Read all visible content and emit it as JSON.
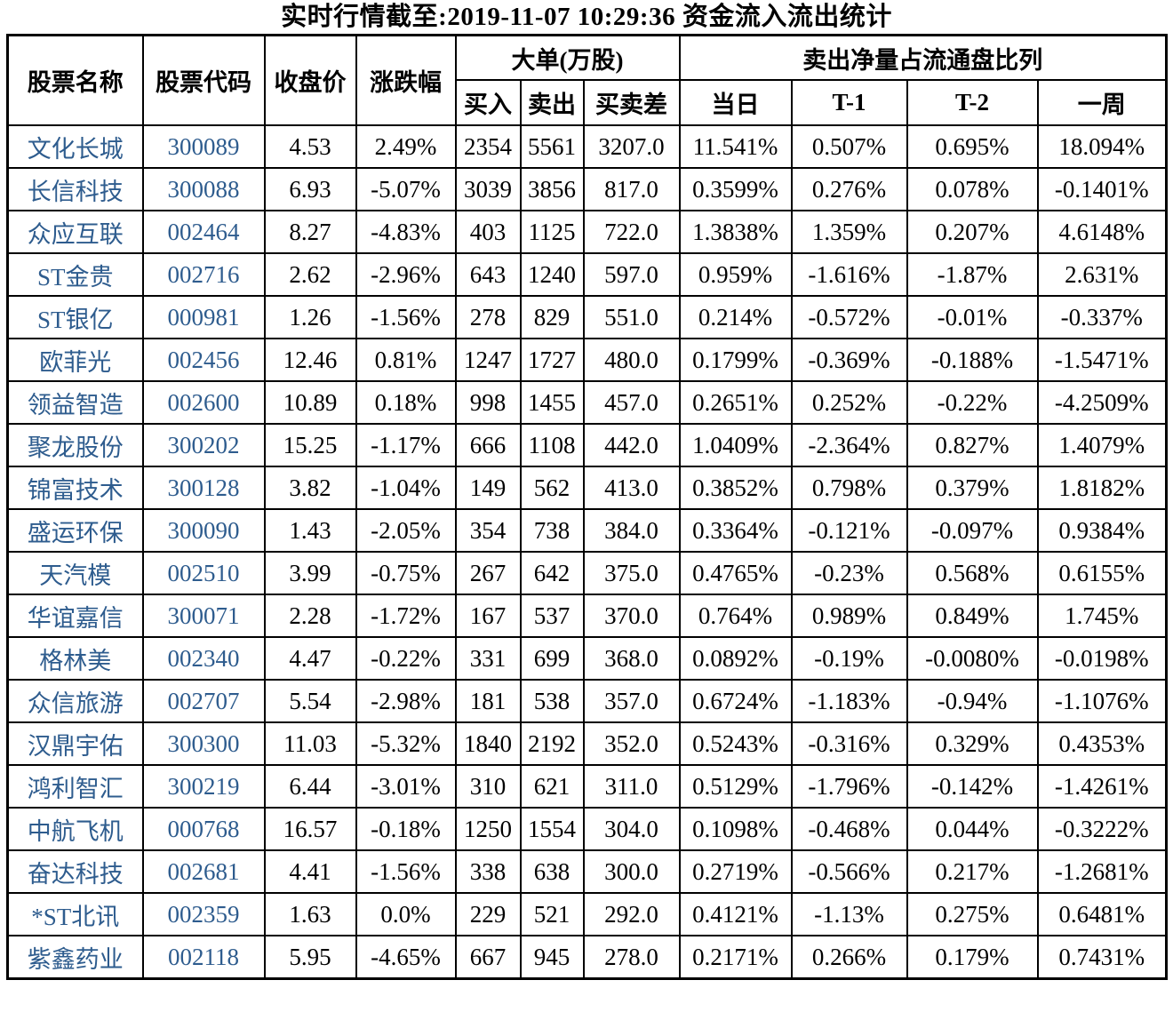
{
  "title": "实时行情截至:2019-11-07 10:29:36 资金流入流出统计",
  "colors": {
    "link_blue": "#2E5C8E",
    "text": "#000000",
    "border": "#000000",
    "background": "#FFFFFF"
  },
  "chart_data": {
    "type": "table",
    "title": "实时行情截至:2019-11-07 10:29:36 资金流入流出统计",
    "header_groups": {
      "large_order": "大单(万股)",
      "net_sell_ratio": "卖出净量占流通盘比列"
    },
    "columns": [
      "股票名称",
      "股票代码",
      "收盘价",
      "涨跌幅",
      "买入",
      "卖出",
      "买卖差",
      "当日",
      "T-1",
      "T-2",
      "一周"
    ],
    "rows": [
      [
        "文化长城",
        "300089",
        "4.53",
        "2.49%",
        "2354",
        "5561",
        "3207.0",
        "11.541%",
        "0.507%",
        "0.695%",
        "18.094%"
      ],
      [
        "长信科技",
        "300088",
        "6.93",
        "-5.07%",
        "3039",
        "3856",
        "817.0",
        "0.3599%",
        "0.276%",
        "0.078%",
        "-0.1401%"
      ],
      [
        "众应互联",
        "002464",
        "8.27",
        "-4.83%",
        "403",
        "1125",
        "722.0",
        "1.3838%",
        "1.359%",
        "0.207%",
        "4.6148%"
      ],
      [
        "ST金贵",
        "002716",
        "2.62",
        "-2.96%",
        "643",
        "1240",
        "597.0",
        "0.959%",
        "-1.616%",
        "-1.87%",
        "2.631%"
      ],
      [
        "ST银亿",
        "000981",
        "1.26",
        "-1.56%",
        "278",
        "829",
        "551.0",
        "0.214%",
        "-0.572%",
        "-0.01%",
        "-0.337%"
      ],
      [
        "欧菲光",
        "002456",
        "12.46",
        "0.81%",
        "1247",
        "1727",
        "480.0",
        "0.1799%",
        "-0.369%",
        "-0.188%",
        "-1.5471%"
      ],
      [
        "领益智造",
        "002600",
        "10.89",
        "0.18%",
        "998",
        "1455",
        "457.0",
        "0.2651%",
        "0.252%",
        "-0.22%",
        "-4.2509%"
      ],
      [
        "聚龙股份",
        "300202",
        "15.25",
        "-1.17%",
        "666",
        "1108",
        "442.0",
        "1.0409%",
        "-2.364%",
        "0.827%",
        "1.4079%"
      ],
      [
        "锦富技术",
        "300128",
        "3.82",
        "-1.04%",
        "149",
        "562",
        "413.0",
        "0.3852%",
        "0.798%",
        "0.379%",
        "1.8182%"
      ],
      [
        "盛运环保",
        "300090",
        "1.43",
        "-2.05%",
        "354",
        "738",
        "384.0",
        "0.3364%",
        "-0.121%",
        "-0.097%",
        "0.9384%"
      ],
      [
        "天汽模",
        "002510",
        "3.99",
        "-0.75%",
        "267",
        "642",
        "375.0",
        "0.4765%",
        "-0.23%",
        "0.568%",
        "0.6155%"
      ],
      [
        "华谊嘉信",
        "300071",
        "2.28",
        "-1.72%",
        "167",
        "537",
        "370.0",
        "0.764%",
        "0.989%",
        "0.849%",
        "1.745%"
      ],
      [
        "格林美",
        "002340",
        "4.47",
        "-0.22%",
        "331",
        "699",
        "368.0",
        "0.0892%",
        "-0.19%",
        "-0.0080%",
        "-0.0198%"
      ],
      [
        "众信旅游",
        "002707",
        "5.54",
        "-2.98%",
        "181",
        "538",
        "357.0",
        "0.6724%",
        "-1.183%",
        "-0.94%",
        "-1.1076%"
      ],
      [
        "汉鼎宇佑",
        "300300",
        "11.03",
        "-5.32%",
        "1840",
        "2192",
        "352.0",
        "0.5243%",
        "-0.316%",
        "0.329%",
        "0.4353%"
      ],
      [
        "鸿利智汇",
        "300219",
        "6.44",
        "-3.01%",
        "310",
        "621",
        "311.0",
        "0.5129%",
        "-1.796%",
        "-0.142%",
        "-1.4261%"
      ],
      [
        "中航飞机",
        "000768",
        "16.57",
        "-0.18%",
        "1250",
        "1554",
        "304.0",
        "0.1098%",
        "-0.468%",
        "0.044%",
        "-0.3222%"
      ],
      [
        "奋达科技",
        "002681",
        "4.41",
        "-1.56%",
        "338",
        "638",
        "300.0",
        "0.2719%",
        "-0.566%",
        "0.217%",
        "-1.2681%"
      ],
      [
        "*ST北讯",
        "002359",
        "1.63",
        "0.0%",
        "229",
        "521",
        "292.0",
        "0.4121%",
        "-1.13%",
        "0.275%",
        "0.6481%"
      ],
      [
        "紫鑫药业",
        "002118",
        "5.95",
        "-4.65%",
        "667",
        "945",
        "278.0",
        "0.2171%",
        "0.266%",
        "0.179%",
        "0.7431%"
      ]
    ]
  }
}
